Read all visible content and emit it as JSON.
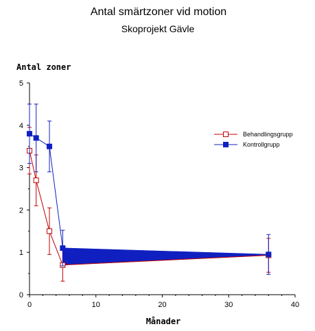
{
  "chart_data": {
    "type": "line",
    "title": "Antal smärtzoner vid motion",
    "subtitle": "Skoprojekt Gävle",
    "xlabel": "Månader",
    "ylabel": "Antal zoner",
    "xlim": [
      0,
      40
    ],
    "ylim": [
      0,
      5
    ],
    "xticks": [
      0,
      10,
      20,
      30,
      40
    ],
    "yticks": [
      0,
      1,
      2,
      3,
      4,
      5
    ],
    "grid": false,
    "legend_position": "right",
    "series": [
      {
        "name": "Behandlingsgrupp",
        "color": "#c00000",
        "marker": "open-square",
        "x": [
          0,
          1,
          3,
          5,
          36
        ],
        "y": [
          3.4,
          2.7,
          1.5,
          0.7,
          0.93
        ],
        "err": [
          0.55,
          0.6,
          0.55,
          0.38,
          0.4
        ]
      },
      {
        "name": "Kontrollgrupp",
        "color": "#1020c0",
        "marker": "filled-square",
        "x": [
          0,
          1,
          3,
          5,
          36
        ],
        "y": [
          3.8,
          3.7,
          3.5,
          1.1,
          0.95
        ],
        "err": [
          0.7,
          0.8,
          0.6,
          0.42,
          0.47
        ]
      }
    ]
  }
}
